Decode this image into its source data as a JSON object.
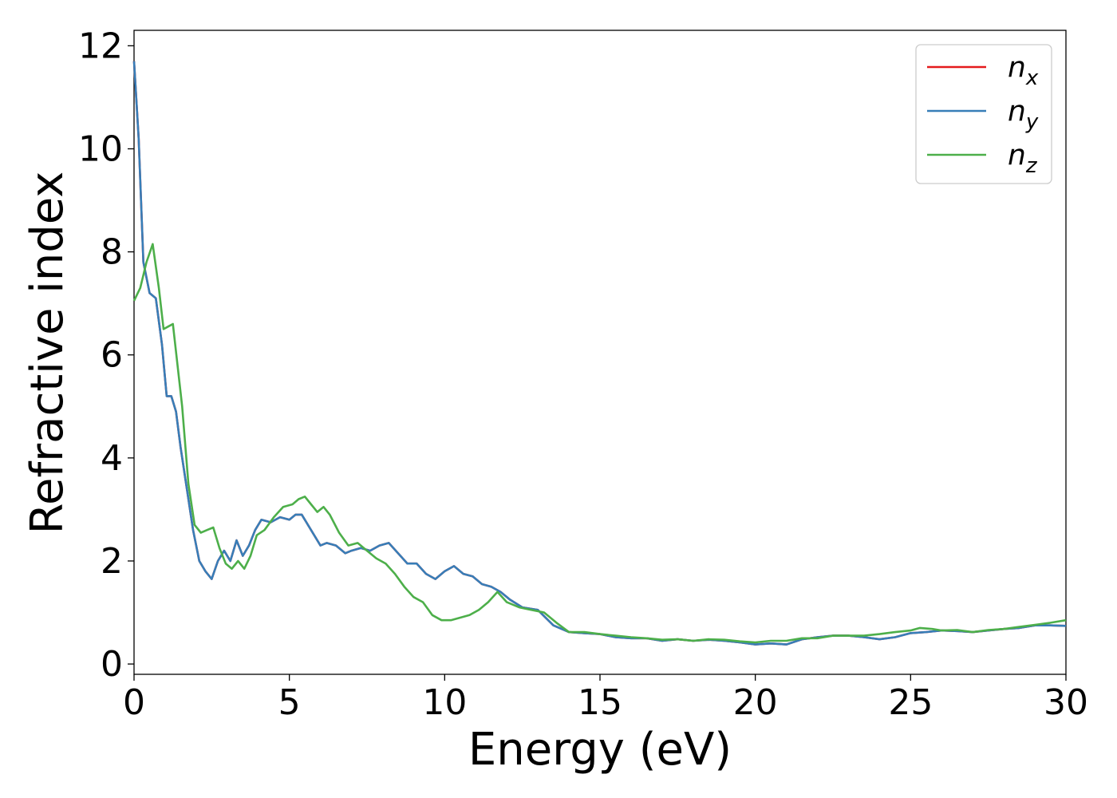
{
  "chart_data": {
    "type": "line",
    "xlabel": "Energy (eV)",
    "ylabel": "Refractive index",
    "xlim": [
      0,
      30
    ],
    "ylim": [
      -0.2,
      12.3
    ],
    "xticks": [
      0,
      5,
      10,
      15,
      20,
      25,
      30
    ],
    "yticks": [
      0,
      2,
      4,
      6,
      8,
      10,
      12
    ],
    "grid": false,
    "legend_position": "top-right",
    "series": [
      {
        "name": "n",
        "subscript": "x",
        "color": "#e41a1c",
        "x": [
          0,
          0.15,
          0.3,
          0.5,
          0.7,
          0.9,
          1.05,
          1.2,
          1.35,
          1.5,
          1.7,
          1.9,
          2.1,
          2.3,
          2.5,
          2.7,
          2.9,
          3.1,
          3.3,
          3.5,
          3.7,
          3.9,
          4.1,
          4.4,
          4.7,
          5.0,
          5.2,
          5.4,
          5.6,
          5.8,
          6.0,
          6.2,
          6.5,
          6.8,
          7.0,
          7.3,
          7.6,
          7.9,
          8.2,
          8.5,
          8.8,
          9.1,
          9.4,
          9.7,
          10.0,
          10.3,
          10.6,
          10.9,
          11.2,
          11.5,
          11.8,
          12.1,
          12.5,
          13.0,
          13.5,
          14.0,
          14.5,
          15.0,
          15.5,
          16.0,
          16.5,
          17.0,
          17.5,
          18.0,
          18.5,
          19.0,
          19.5,
          20.0,
          20.5,
          21.0,
          21.5,
          22.0,
          22.5,
          23.0,
          23.5,
          24.0,
          24.5,
          25.0,
          25.5,
          26.0,
          26.5,
          27.0,
          27.5,
          28.0,
          28.5,
          29.0,
          29.5,
          30.0
        ],
        "y": [
          11.7,
          10.2,
          7.8,
          7.2,
          7.1,
          6.2,
          5.2,
          5.2,
          4.9,
          4.2,
          3.4,
          2.6,
          2.0,
          1.8,
          1.65,
          2.0,
          2.2,
          2.0,
          2.4,
          2.1,
          2.3,
          2.6,
          2.8,
          2.75,
          2.85,
          2.8,
          2.9,
          2.9,
          2.7,
          2.5,
          2.3,
          2.35,
          2.3,
          2.15,
          2.2,
          2.25,
          2.2,
          2.3,
          2.35,
          2.15,
          1.95,
          1.95,
          1.75,
          1.65,
          1.8,
          1.9,
          1.75,
          1.7,
          1.55,
          1.5,
          1.4,
          1.25,
          1.1,
          1.05,
          0.75,
          0.62,
          0.6,
          0.58,
          0.52,
          0.5,
          0.5,
          0.45,
          0.48,
          0.45,
          0.47,
          0.45,
          0.42,
          0.38,
          0.4,
          0.38,
          0.48,
          0.52,
          0.55,
          0.55,
          0.52,
          0.48,
          0.52,
          0.6,
          0.62,
          0.65,
          0.64,
          0.62,
          0.65,
          0.68,
          0.7,
          0.75,
          0.75,
          0.74
        ]
      },
      {
        "name": "n",
        "subscript": "y",
        "color": "#377eb8",
        "x": [
          0,
          0.15,
          0.3,
          0.5,
          0.7,
          0.9,
          1.05,
          1.2,
          1.35,
          1.5,
          1.7,
          1.9,
          2.1,
          2.3,
          2.5,
          2.7,
          2.9,
          3.1,
          3.3,
          3.5,
          3.7,
          3.9,
          4.1,
          4.4,
          4.7,
          5.0,
          5.2,
          5.4,
          5.6,
          5.8,
          6.0,
          6.2,
          6.5,
          6.8,
          7.0,
          7.3,
          7.6,
          7.9,
          8.2,
          8.5,
          8.8,
          9.1,
          9.4,
          9.7,
          10.0,
          10.3,
          10.6,
          10.9,
          11.2,
          11.5,
          11.8,
          12.1,
          12.5,
          13.0,
          13.5,
          14.0,
          14.5,
          15.0,
          15.5,
          16.0,
          16.5,
          17.0,
          17.5,
          18.0,
          18.5,
          19.0,
          19.5,
          20.0,
          20.5,
          21.0,
          21.5,
          22.0,
          22.5,
          23.0,
          23.5,
          24.0,
          24.5,
          25.0,
          25.5,
          26.0,
          26.5,
          27.0,
          27.5,
          28.0,
          28.5,
          29.0,
          29.5,
          30.0
        ],
        "y": [
          11.7,
          10.2,
          7.8,
          7.2,
          7.1,
          6.2,
          5.2,
          5.2,
          4.9,
          4.2,
          3.4,
          2.6,
          2.0,
          1.8,
          1.65,
          2.0,
          2.2,
          2.0,
          2.4,
          2.1,
          2.3,
          2.6,
          2.8,
          2.75,
          2.85,
          2.8,
          2.9,
          2.9,
          2.7,
          2.5,
          2.3,
          2.35,
          2.3,
          2.15,
          2.2,
          2.25,
          2.2,
          2.3,
          2.35,
          2.15,
          1.95,
          1.95,
          1.75,
          1.65,
          1.8,
          1.9,
          1.75,
          1.7,
          1.55,
          1.5,
          1.4,
          1.25,
          1.1,
          1.05,
          0.75,
          0.62,
          0.6,
          0.58,
          0.52,
          0.5,
          0.5,
          0.45,
          0.48,
          0.45,
          0.47,
          0.45,
          0.42,
          0.38,
          0.4,
          0.38,
          0.48,
          0.52,
          0.55,
          0.55,
          0.52,
          0.48,
          0.52,
          0.6,
          0.62,
          0.65,
          0.64,
          0.62,
          0.65,
          0.68,
          0.7,
          0.75,
          0.75,
          0.74
        ]
      },
      {
        "name": "n",
        "subscript": "z",
        "color": "#4daf4a",
        "x": [
          0,
          0.2,
          0.4,
          0.6,
          0.8,
          0.95,
          1.1,
          1.25,
          1.4,
          1.55,
          1.75,
          1.95,
          2.15,
          2.35,
          2.55,
          2.75,
          2.95,
          3.15,
          3.35,
          3.55,
          3.75,
          3.95,
          4.2,
          4.5,
          4.8,
          5.1,
          5.3,
          5.5,
          5.7,
          5.9,
          6.1,
          6.3,
          6.6,
          6.9,
          7.2,
          7.5,
          7.8,
          8.1,
          8.4,
          8.7,
          9.0,
          9.3,
          9.6,
          9.9,
          10.2,
          10.5,
          10.8,
          11.1,
          11.4,
          11.7,
          12.0,
          12.4,
          12.8,
          13.2,
          13.6,
          14.0,
          14.5,
          15.0,
          15.5,
          16.0,
          16.5,
          17.0,
          17.5,
          18.0,
          18.5,
          19.0,
          19.5,
          20.0,
          20.5,
          21.0,
          21.5,
          22.0,
          22.5,
          23.0,
          23.5,
          24.0,
          24.5,
          25.0,
          25.3,
          25.7,
          26.0,
          26.5,
          27.0,
          27.5,
          28.0,
          28.5,
          29.0,
          29.5,
          30.0
        ],
        "y": [
          7.05,
          7.3,
          7.8,
          8.15,
          7.3,
          6.5,
          6.55,
          6.6,
          5.8,
          5.0,
          3.5,
          2.7,
          2.55,
          2.6,
          2.65,
          2.25,
          1.95,
          1.85,
          2.0,
          1.85,
          2.1,
          2.5,
          2.6,
          2.85,
          3.05,
          3.1,
          3.2,
          3.25,
          3.1,
          2.95,
          3.05,
          2.9,
          2.55,
          2.3,
          2.35,
          2.2,
          2.05,
          1.95,
          1.75,
          1.5,
          1.3,
          1.2,
          0.95,
          0.85,
          0.85,
          0.9,
          0.95,
          1.05,
          1.2,
          1.4,
          1.2,
          1.1,
          1.05,
          1.0,
          0.8,
          0.62,
          0.62,
          0.58,
          0.55,
          0.52,
          0.5,
          0.47,
          0.48,
          0.45,
          0.48,
          0.47,
          0.44,
          0.42,
          0.45,
          0.45,
          0.5,
          0.5,
          0.55,
          0.55,
          0.55,
          0.58,
          0.62,
          0.65,
          0.7,
          0.68,
          0.65,
          0.66,
          0.62,
          0.66,
          0.68,
          0.72,
          0.76,
          0.8,
          0.85
        ]
      }
    ]
  }
}
